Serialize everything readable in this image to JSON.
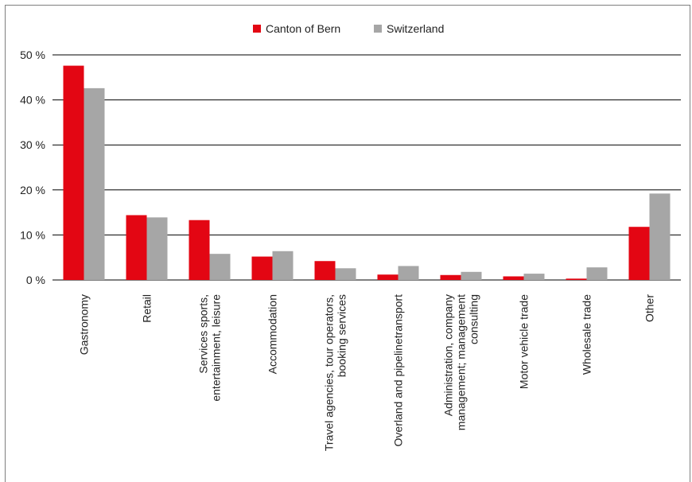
{
  "chart_data": {
    "type": "bar",
    "title": "",
    "xlabel": "",
    "ylabel": "",
    "categories": [
      "Gastronomy",
      "Retail",
      "Services sports, entertainment, leisure",
      "Accommodation",
      "Travel agencies, tour operators, booking services",
      "Overland and pipelinetransport",
      "Administration, company management; management consulting",
      "Motor vehicle trade",
      "Wholesale trade",
      "Other"
    ],
    "category_lines": [
      [
        "Gastronomy"
      ],
      [
        "Retail"
      ],
      [
        "Services sports,",
        "entertainment, leisure"
      ],
      [
        "Accommodation"
      ],
      [
        "Travel agencies, tour operators,",
        "booking services"
      ],
      [
        "Overland and pipelinetransport"
      ],
      [
        "Administration, company",
        "management; management",
        "consulting"
      ],
      [
        "Motor vehicle trade"
      ],
      [
        "Wholesale trade"
      ],
      [
        "Other"
      ]
    ],
    "series": [
      {
        "name": "Canton of Bern",
        "color": "#e30613",
        "values": [
          47.6,
          14.4,
          13.3,
          5.2,
          4.2,
          1.2,
          1.1,
          0.8,
          0.3,
          11.8
        ]
      },
      {
        "name": "Switzerland",
        "color": "#a6a6a6",
        "values": [
          42.6,
          13.9,
          5.8,
          6.4,
          2.6,
          3.1,
          1.8,
          1.4,
          2.8,
          19.2
        ]
      }
    ],
    "ylim": [
      0,
      50
    ],
    "yticks": [
      0,
      10,
      20,
      30,
      40,
      50
    ],
    "ytick_labels": [
      "0 %",
      "10 %",
      "20 %",
      "30 %",
      "40 %",
      "50 %"
    ],
    "grid": true,
    "legend_position": "top-center"
  }
}
